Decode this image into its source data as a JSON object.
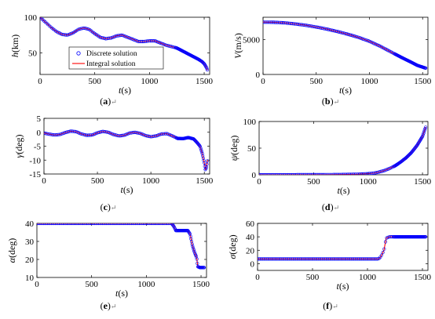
{
  "panel_captions": [
    "(a)",
    "(b)",
    "(c)",
    "(d)",
    "(e)",
    "(f)"
  ],
  "return_mark": "↵",
  "legend": {
    "discrete_label": "Discrete solution",
    "integral_label": "Integral solution",
    "discrete_color": "#0000ff",
    "integral_color": "#ff0000"
  },
  "chart_data": [
    {
      "type": "line",
      "xlabel_italic": "t",
      "xlabel_unit": "(s)",
      "ylabel_italic": "h",
      "ylabel_unit": "(km)",
      "xlim": [
        0,
        1550
      ],
      "ylim": [
        20,
        100
      ],
      "xticks": [
        0,
        500,
        1000,
        1500
      ],
      "yticks": [
        50,
        100
      ],
      "has_legend": true,
      "x": [
        0,
        50,
        100,
        150,
        200,
        250,
        300,
        350,
        400,
        450,
        500,
        550,
        600,
        650,
        700,
        750,
        800,
        850,
        900,
        950,
        1000,
        1050,
        1100,
        1150,
        1200,
        1250,
        1300,
        1350,
        1400,
        1450,
        1480,
        1500,
        1520,
        1530
      ],
      "values": [
        100,
        93,
        86,
        80,
        76,
        75,
        78,
        83,
        85,
        83,
        77,
        72,
        70,
        71,
        74,
        75,
        72,
        69,
        66,
        66,
        67,
        67,
        64,
        61,
        59,
        57,
        53,
        49,
        45,
        41,
        38,
        35,
        30,
        26
      ]
    },
    {
      "type": "line",
      "xlabel_italic": "t",
      "xlabel_unit": "(s)",
      "ylabel_italic": "V",
      "ylabel_unit": "(m/s)",
      "xlim": [
        0,
        1550
      ],
      "ylim": [
        0,
        8200
      ],
      "xticks": [
        0,
        500,
        1000,
        1500
      ],
      "yticks": [
        0,
        5000
      ],
      "x": [
        0,
        100,
        200,
        300,
        400,
        500,
        600,
        700,
        800,
        900,
        1000,
        1100,
        1200,
        1300,
        1400,
        1450,
        1500,
        1530
      ],
      "values": [
        7500,
        7480,
        7400,
        7250,
        7050,
        6800,
        6500,
        6150,
        5750,
        5300,
        4750,
        4050,
        3250,
        2450,
        1700,
        1300,
        1050,
        900
      ]
    },
    {
      "type": "line",
      "xlabel_italic": "t",
      "xlabel_unit": "(s)",
      "ylabel_italic": "γ",
      "ylabel_unit": "(deg)",
      "xlim": [
        0,
        1550
      ],
      "ylim": [
        -15,
        5
      ],
      "xticks": [
        0,
        500,
        1000,
        1500
      ],
      "yticks": [
        -15,
        -10,
        -5,
        0,
        5
      ],
      "x": [
        0,
        50,
        100,
        150,
        200,
        250,
        300,
        350,
        400,
        450,
        500,
        550,
        600,
        650,
        700,
        750,
        800,
        850,
        900,
        950,
        1000,
        1050,
        1100,
        1150,
        1200,
        1250,
        1300,
        1350,
        1400,
        1430,
        1460,
        1480,
        1500,
        1510,
        1520,
        1530
      ],
      "values": [
        -0.3,
        -0.7,
        -1.0,
        -0.8,
        -0.1,
        0.4,
        0.2,
        -0.6,
        -1.1,
        -1.0,
        -0.2,
        0.3,
        0.0,
        -0.8,
        -1.3,
        -1.1,
        -0.3,
        0.0,
        -0.4,
        -1.2,
        -1.6,
        -1.3,
        -0.6,
        -0.5,
        -1.3,
        -2.2,
        -2.3,
        -1.9,
        -2.4,
        -3.6,
        -5.0,
        -7.5,
        -11.0,
        -13.5,
        -12.5,
        -10.0
      ]
    },
    {
      "type": "line",
      "xlabel_italic": "t",
      "xlabel_unit": "(s)",
      "ylabel_italic": "ψ",
      "ylabel_unit": "(deg)",
      "xlim": [
        0,
        1550
      ],
      "ylim": [
        0,
        100
      ],
      "xticks": [
        0,
        500,
        1000,
        1500
      ],
      "yticks": [
        0,
        50,
        100
      ],
      "x": [
        0,
        200,
        400,
        600,
        800,
        900,
        1000,
        1050,
        1100,
        1150,
        1200,
        1250,
        1300,
        1350,
        1400,
        1450,
        1500,
        1530
      ],
      "values": [
        0,
        0,
        0.1,
        0.2,
        0.6,
        1.0,
        2.0,
        3.0,
        5.0,
        8.0,
        12.0,
        17.0,
        24.0,
        32.0,
        42.0,
        55.0,
        72.0,
        90.0
      ]
    },
    {
      "type": "line",
      "xlabel_italic": "t",
      "xlabel_unit": "(s)",
      "ylabel_italic": "α",
      "ylabel_unit": "(deg)",
      "xlim": [
        0,
        1550
      ],
      "ylim": [
        10,
        40
      ],
      "xticks": [
        0,
        500,
        1000,
        1500
      ],
      "yticks": [
        10,
        20,
        30,
        40
      ],
      "x": [
        0,
        1230,
        1250,
        1270,
        1380,
        1400,
        1420,
        1440,
        1460,
        1470,
        1490,
        1530
      ],
      "values": [
        40,
        40,
        38.5,
        36,
        36,
        34,
        28,
        24,
        21,
        16,
        15.5,
        15.5
      ]
    },
    {
      "type": "line",
      "xlabel_italic": "t",
      "xlabel_unit": "(s)",
      "ylabel_italic": "σ",
      "ylabel_unit": "(deg)",
      "xlim": [
        0,
        1550
      ],
      "ylim": [
        -10,
        60
      ],
      "xticks": [
        0,
        500,
        1000,
        1500
      ],
      "yticks": [
        0,
        20,
        40,
        60
      ],
      "x": [
        0,
        1100,
        1120,
        1150,
        1170,
        1200,
        1530
      ],
      "values": [
        7,
        7,
        10,
        20,
        38,
        40,
        40
      ]
    }
  ]
}
